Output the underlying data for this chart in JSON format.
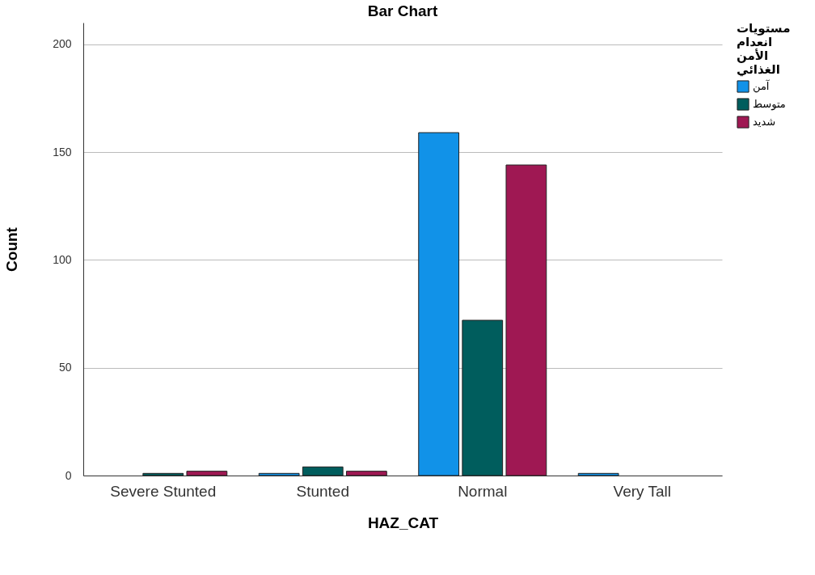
{
  "chart_data": {
    "type": "bar",
    "title": "Bar Chart",
    "xlabel": "HAZ_CAT",
    "ylabel": "Count",
    "legend_title": "مستويات انعدام الأمن الغذائي",
    "categories": [
      "Severe Stunted",
      "Stunted",
      "Normal",
      "Very Tall"
    ],
    "series": [
      {
        "name": "آمن",
        "color": "#1192e8",
        "values": [
          null,
          1,
          159,
          1
        ]
      },
      {
        "name": "متوسط",
        "color": "#005d5d",
        "values": [
          1,
          4,
          72,
          null
        ]
      },
      {
        "name": "شديد",
        "color": "#9f1853",
        "values": [
          2,
          2,
          144,
          null
        ]
      }
    ],
    "ylim": [
      0,
      210
    ],
    "yticks": [
      0,
      50,
      100,
      150,
      200
    ],
    "grid": "y",
    "legend": "top right"
  }
}
